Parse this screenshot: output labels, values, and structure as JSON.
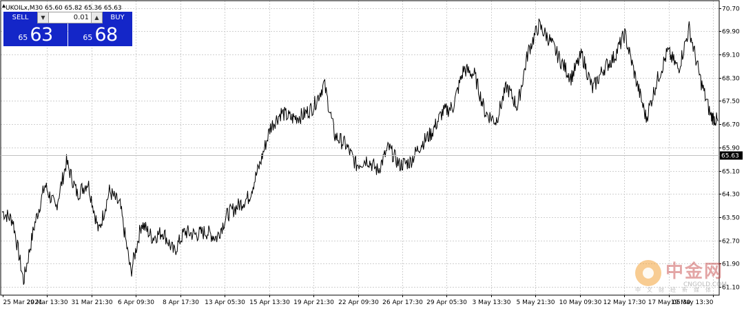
{
  "header": {
    "text": "UKOILx,M30  65.60 65.82 65.36 65.63"
  },
  "trade_panel": {
    "sell_label": "SELL",
    "buy_label": "BUY",
    "lot_value": "0.01",
    "sell_price_prefix": "65",
    "sell_price_big": "63",
    "buy_price_prefix": "65",
    "buy_price_big": "68",
    "down_arrow": "▼",
    "up_arrow": "▲"
  },
  "colors": {
    "panel_blue": "#1426c8",
    "grid": "#c8c8c8",
    "line": "#000000"
  },
  "watermark": {
    "title": "中金网",
    "url": "CNGOLD.COM",
    "sub": "中文财经新媒体",
    "logo_icon": "cngold-logo-icon"
  },
  "chart_data": {
    "type": "line",
    "symbol": "UKOILx",
    "timeframe": "M30",
    "ohlc": {
      "open": 65.6,
      "high": 65.82,
      "low": 65.36,
      "close": 65.63
    },
    "current_price_label": "65.63",
    "ylim": [
      60.82,
      70.95
    ],
    "y_ticks": [
      "70.70",
      "69.90",
      "69.10",
      "68.30",
      "67.50",
      "66.70",
      "65.90",
      "65.10",
      "64.30",
      "63.50",
      "62.70",
      "61.90",
      "61.10"
    ],
    "x_ticks": [
      "25 Mar 2021",
      "29 Mar 13:30",
      "31 Mar 21:30",
      "6 Apr 09:30",
      "8 Apr 17:30",
      "13 Apr 05:30",
      "15 Apr 13:30",
      "19 Apr 21:30",
      "22 Apr 09:30",
      "26 Apr 17:30",
      "29 Apr 05:30",
      "3 May 13:30",
      "5 May 21:30",
      "10 May 09:30",
      "12 May 17:30",
      "17 May 05:30",
      "19 May 13:30"
    ],
    "grid": true,
    "x": [
      0,
      0.015,
      0.03,
      0.045,
      0.06,
      0.075,
      0.09,
      0.105,
      0.12,
      0.135,
      0.15,
      0.165,
      0.18,
      0.195,
      0.21,
      0.225,
      0.24,
      0.255,
      0.27,
      0.285,
      0.3,
      0.315,
      0.33,
      0.345,
      0.36,
      0.375,
      0.39,
      0.405,
      0.42,
      0.435,
      0.45,
      0.465,
      0.48,
      0.495,
      0.51,
      0.525,
      0.54,
      0.555,
      0.57,
      0.585,
      0.6,
      0.615,
      0.63,
      0.645,
      0.66,
      0.675,
      0.69,
      0.705,
      0.72,
      0.735,
      0.75,
      0.765,
      0.78,
      0.795,
      0.81,
      0.825,
      0.84,
      0.855,
      0.87,
      0.885,
      0.9,
      0.915,
      0.93,
      0.945,
      0.96,
      0.975,
      0.99,
      1.0
    ],
    "values": [
      63.7,
      63.4,
      61.3,
      63.2,
      64.6,
      63.8,
      65.4,
      64.3,
      64.7,
      63.0,
      64.4,
      63.9,
      61.6,
      63.3,
      62.8,
      63.0,
      62.3,
      63.0,
      62.9,
      63.0,
      62.8,
      63.6,
      63.9,
      64.2,
      65.3,
      66.6,
      67.1,
      66.9,
      67.0,
      67.3,
      68.1,
      66.3,
      66.0,
      65.3,
      65.5,
      65.1,
      65.9,
      65.3,
      65.4,
      66.0,
      66.4,
      67.1,
      67.3,
      68.6,
      68.4,
      67.1,
      66.8,
      68.0,
      67.3,
      69.2,
      70.1,
      69.6,
      68.9,
      68.3,
      69.1,
      67.9,
      68.6,
      69.0,
      69.8,
      68.3,
      66.9,
      68.2,
      69.2,
      68.6,
      70.0,
      68.3,
      67.0,
      66.8
    ]
  }
}
